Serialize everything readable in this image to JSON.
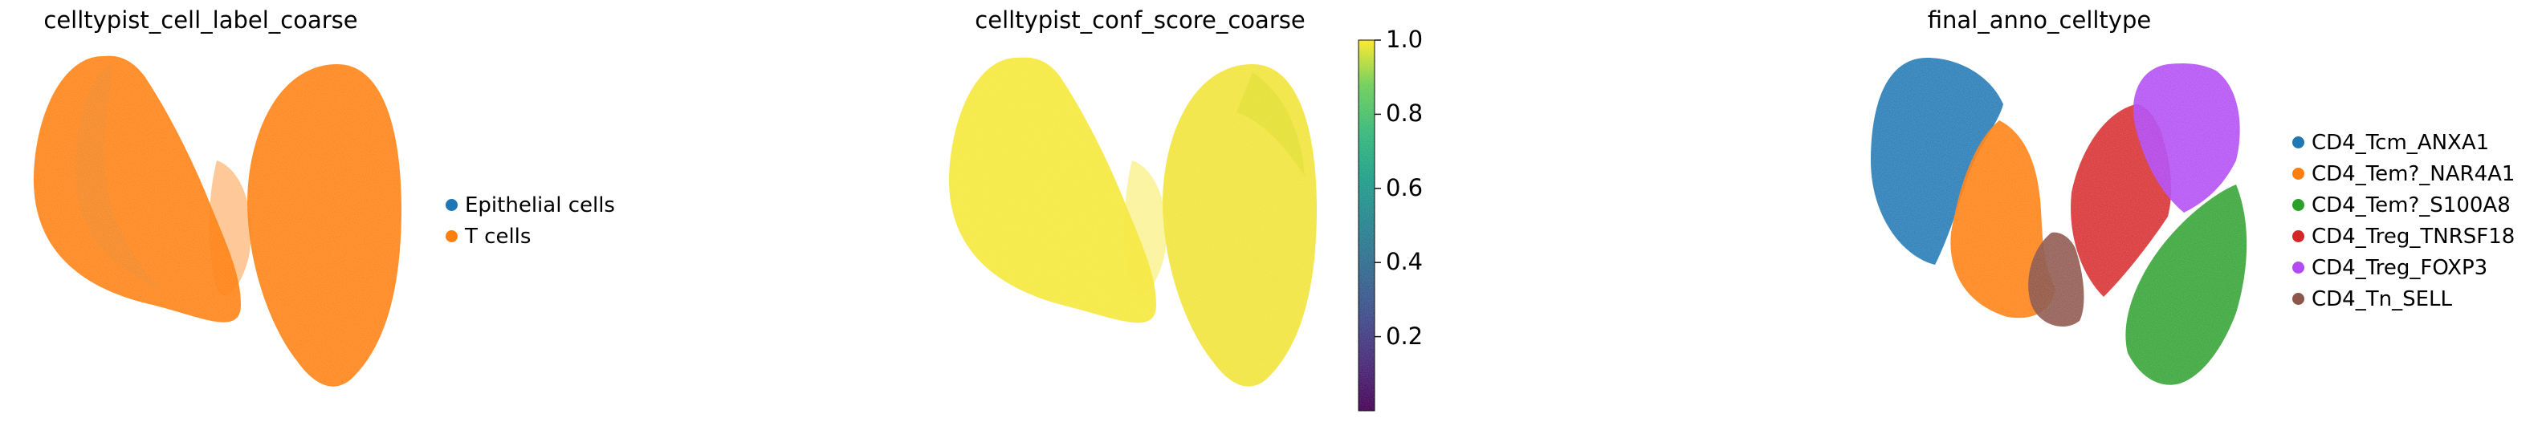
{
  "chart_data": [
    {
      "type": "scatter",
      "title": "celltypist_cell_label_coarse",
      "legend_placement": "right",
      "categories": [
        "Epithelial cells",
        "T cells"
      ],
      "colors": [
        "#1f77b4",
        "#ff7f0e"
      ],
      "grid": false,
      "axes_visible": false
    },
    {
      "type": "scatter",
      "title": "celltypist_conf_score_coarse",
      "colorbar": {
        "colormap": "viridis",
        "range": [
          0.0,
          1.0
        ],
        "ticks": [
          "1.0",
          "0.8",
          "0.6",
          "0.4",
          "0.2"
        ],
        "tick_values": [
          1.0,
          0.8,
          0.6,
          0.4,
          0.2
        ]
      },
      "grid": false,
      "axes_visible": false
    },
    {
      "type": "scatter",
      "title": "final_anno_celltype",
      "legend_placement": "right",
      "categories": [
        "CD4_Tcm_ANXA1",
        "CD4_Tem?_NAR4A1",
        "CD4_Tem?_S100A8",
        "CD4_Treg_TNRSF18",
        "CD4_Treg_FOXP3",
        "CD4_Tn_SELL"
      ],
      "colors": [
        "#1f77b4",
        "#ff7f0e",
        "#2ca02c",
        "#d62728",
        "#b24bf3",
        "#8c564b"
      ],
      "grid": false,
      "axes_visible": false
    }
  ]
}
